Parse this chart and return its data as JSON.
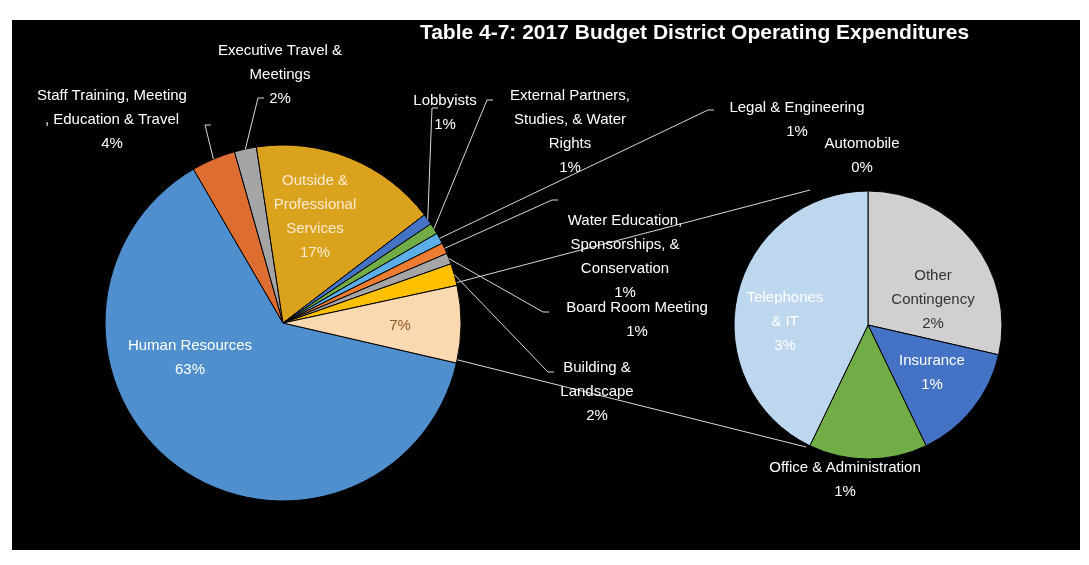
{
  "chart_data": [
    {
      "type": "pie",
      "title": "Table 4-7: 2017 Budget  District Operating Expenditures",
      "categories": [
        "Human Resources",
        "Staff Training, Meeting , Education & Travel",
        "Executive Travel & Meetings",
        "Outside & Professional Services",
        "Lobbyists",
        "External Partners, Studies, & Water Rights",
        "Legal & Engineering",
        "Water Education, Sponsorships, & Conservation",
        "Board Room Meeting",
        "Building & Landscape",
        null
      ],
      "values": [
        63,
        4,
        2,
        17,
        1,
        1,
        1,
        1,
        1,
        2,
        7
      ],
      "value_labels": [
        "63%",
        "4%",
        "2%",
        "17%",
        "1%",
        "1%",
        "1%",
        "1%",
        "1%",
        "2%",
        "7%"
      ],
      "colors": [
        "#4f8fce",
        "#de6d32",
        "#a5a5a5",
        "#dba21e",
        "#4472c4",
        "#70ad47",
        "#5baee8",
        "#ed7d31",
        "#a5a5a5",
        "#ffc000",
        "#fbd9b0"
      ]
    },
    {
      "type": "pie",
      "categories": [
        "Automobile",
        "Other Contingency",
        "Insurance",
        "Office & Administration",
        "Telephones & IT"
      ],
      "values": [
        0,
        2,
        1,
        1,
        3
      ],
      "value_labels": [
        "0%",
        "2%",
        "1%",
        "1%",
        "3%"
      ],
      "colors": [
        "#f4b183",
        "#d0d0d0",
        "#4472c4",
        "#70ad47",
        "#bdd7ee"
      ]
    }
  ]
}
